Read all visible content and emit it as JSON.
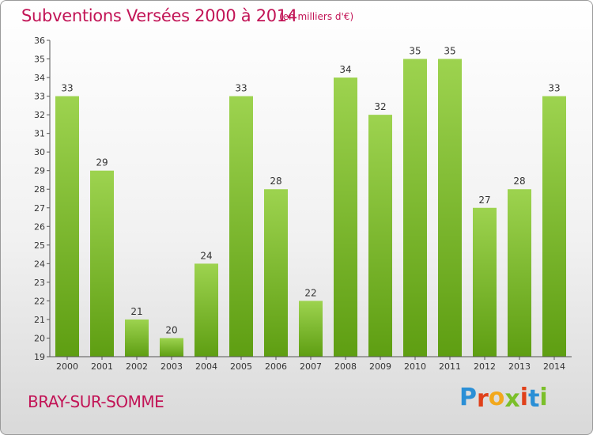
{
  "header": {
    "title": "Subventions Versées 2000 à 2014",
    "unit": "(en milliers d'€)"
  },
  "footer": {
    "commune": "BRAY-SUR-SOMME",
    "logo_letters": [
      "P",
      "r",
      "o",
      "x",
      "i",
      "t",
      "i"
    ],
    "logo_colors": [
      "#2a8fd6",
      "#e0401a",
      "#f2a81d",
      "#7bbf2a",
      "#e0401a",
      "#2a8fd6",
      "#7bbf2a"
    ]
  },
  "chart_data": {
    "type": "bar",
    "title": "Subventions Versées 2000 à 2014",
    "subtitle": "(en milliers d'€)",
    "xlabel": "",
    "ylabel": "",
    "categories": [
      "2000",
      "2001",
      "2002",
      "2003",
      "2004",
      "2005",
      "2006",
      "2007",
      "2008",
      "2009",
      "2010",
      "2011",
      "2012",
      "2013",
      "2014"
    ],
    "values": [
      33,
      29,
      21,
      20,
      24,
      33,
      28,
      22,
      34,
      32,
      35,
      35,
      27,
      28,
      33
    ],
    "ylim": [
      19,
      36
    ],
    "yticks": [
      19,
      20,
      21,
      22,
      23,
      24,
      25,
      26,
      27,
      28,
      29,
      30,
      31,
      32,
      33,
      34,
      35,
      36
    ],
    "grid": false,
    "bar_color_top": "#9dd34f",
    "bar_color_bottom": "#5e9e12",
    "data_labels": true
  }
}
